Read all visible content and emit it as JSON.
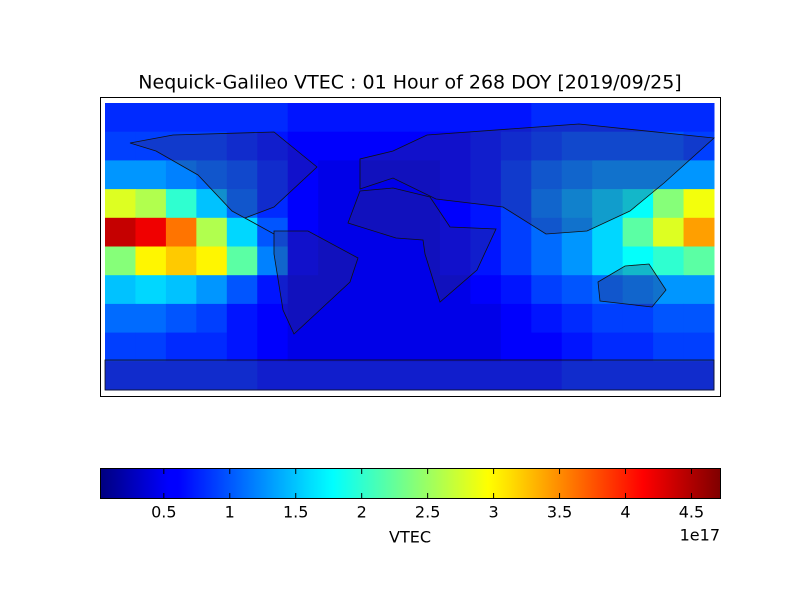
{
  "chart_data": {
    "type": "heatmap",
    "title": "Nequick-Galileo VTEC : 01 Hour of 268 DOY [2019/09/25]",
    "colorbar": {
      "label": "VTEC",
      "offset_label": "1e17",
      "lim": [
        0.02,
        4.72
      ],
      "ticks": [
        0.5,
        1.0,
        1.5,
        2.0,
        2.5,
        3.0,
        3.5,
        4.0,
        4.5
      ],
      "colormap": "jet"
    },
    "values": [
      [
        0.8,
        0.8,
        0.8,
        0.8,
        0.8,
        0.8,
        0.7,
        0.7,
        0.7,
        0.7,
        0.7,
        0.7,
        0.7,
        0.7,
        0.8,
        0.8,
        0.8,
        0.8,
        0.8,
        0.8
      ],
      [
        0.9,
        0.9,
        0.9,
        0.9,
        0.8,
        0.7,
        0.6,
        0.6,
        0.6,
        0.6,
        0.6,
        0.6,
        0.7,
        0.8,
        0.9,
        1.0,
        1.0,
        1.0,
        1.0,
        0.9
      ],
      [
        1.3,
        1.3,
        1.2,
        1.1,
        1.0,
        0.8,
        0.6,
        0.5,
        0.5,
        0.5,
        0.5,
        0.6,
        0.7,
        0.9,
        1.1,
        1.2,
        1.3,
        1.3,
        1.3,
        1.3
      ],
      [
        2.8,
        2.6,
        2.0,
        1.5,
        1.1,
        0.8,
        0.6,
        0.5,
        0.5,
        0.5,
        0.5,
        0.6,
        0.7,
        0.9,
        1.2,
        1.4,
        1.6,
        1.8,
        2.4,
        2.9
      ],
      [
        4.4,
        4.2,
        3.6,
        2.6,
        1.6,
        1.0,
        0.6,
        0.5,
        0.5,
        0.5,
        0.5,
        0.6,
        0.7,
        0.9,
        1.1,
        1.3,
        1.6,
        2.2,
        2.8,
        3.4
      ],
      [
        2.4,
        3.0,
        3.2,
        3.0,
        2.2,
        1.2,
        0.6,
        0.5,
        0.5,
        0.5,
        0.5,
        0.6,
        0.7,
        0.9,
        1.1,
        1.3,
        1.6,
        1.8,
        2.0,
        2.2
      ],
      [
        1.5,
        1.6,
        1.5,
        1.3,
        1.0,
        0.7,
        0.5,
        0.5,
        0.5,
        0.5,
        0.5,
        0.5,
        0.6,
        0.7,
        0.9,
        1.0,
        1.1,
        1.2,
        1.3,
        1.3
      ],
      [
        1.1,
        1.1,
        1.0,
        0.9,
        0.7,
        0.6,
        0.5,
        0.5,
        0.5,
        0.5,
        0.5,
        0.5,
        0.5,
        0.6,
        0.7,
        0.8,
        0.9,
        0.9,
        1.0,
        1.0
      ],
      [
        0.9,
        0.9,
        0.8,
        0.8,
        0.7,
        0.6,
        0.5,
        0.5,
        0.5,
        0.5,
        0.5,
        0.5,
        0.5,
        0.6,
        0.6,
        0.7,
        0.8,
        0.8,
        0.9,
        0.9
      ],
      [
        0.8,
        0.8,
        0.8,
        0.8,
        0.8,
        0.7,
        0.7,
        0.7,
        0.7,
        0.7,
        0.7,
        0.7,
        0.7,
        0.7,
        0.7,
        0.8,
        0.8,
        0.8,
        0.8,
        0.8
      ]
    ]
  }
}
